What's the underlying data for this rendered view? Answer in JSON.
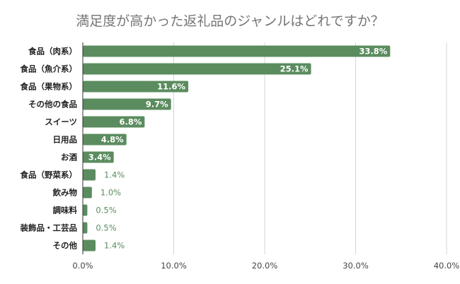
{
  "chart_data": {
    "type": "bar",
    "orientation": "horizontal",
    "title": "満足度が高かった返礼品のジャンルはどれですか？",
    "xlabel": "",
    "ylabel": "",
    "xlim": [
      0,
      40
    ],
    "ticks": [
      "0.0%",
      "10.0%",
      "20.0%",
      "30.0%",
      "40.0%"
    ],
    "tick_values": [
      0,
      10,
      20,
      30,
      40
    ],
    "grid": true,
    "legend": "none",
    "bar_color": "#5b8c5f",
    "categories": [
      "食品（肉系）",
      "食品（魚介系）",
      "食品（果物系）",
      "その他の食品",
      "スイーツ",
      "日用品",
      "お酒",
      "食品（野菜系）",
      "飲み物",
      "調味料",
      "装飾品・工芸品",
      "その他"
    ],
    "values": [
      33.8,
      25.1,
      11.6,
      9.7,
      6.8,
      4.8,
      3.4,
      1.4,
      1.0,
      0.5,
      0.5,
      1.4
    ],
    "data_labels": [
      "33.8%",
      "25.1%",
      "11.6%",
      "9.7%",
      "6.8%",
      "4.8%",
      "3.4%",
      "1.4%",
      "1.0%",
      "0.5%",
      "0.5%",
      "1.4%"
    ]
  }
}
